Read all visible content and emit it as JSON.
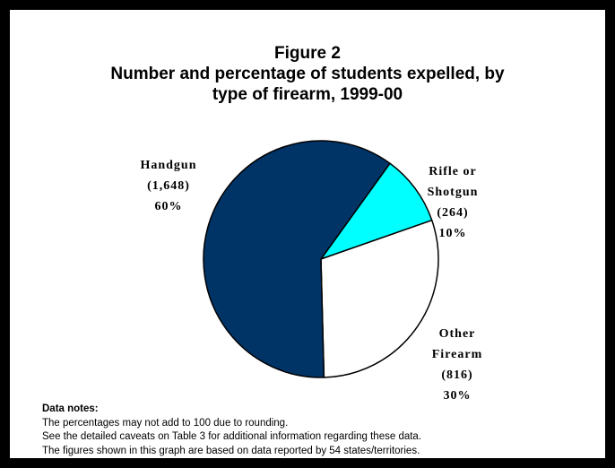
{
  "title": {
    "line1": "Figure 2",
    "line2": "Number and percentage of students expelled, by",
    "line3": "type of firearm, 1999-00"
  },
  "chart_data": {
    "type": "pie",
    "title": "Figure 2 Number and percentage of students expelled, by type of firearm, 1999-00",
    "slices": [
      {
        "label_lines": [
          "Rifle or",
          "Shotgun"
        ],
        "count": "(264)",
        "value": 264,
        "percent": "10%",
        "color": "#00ffff"
      },
      {
        "label_lines": [
          "Other",
          "Firearm"
        ],
        "count": "(816)",
        "value": 816,
        "percent": "30%",
        "color": "#ffffff"
      },
      {
        "label_lines": [
          "Handgun"
        ],
        "count": "(1,648)",
        "value": 1648,
        "percent": "60%",
        "color": "#003366"
      }
    ],
    "start_angle_deg": 36,
    "direction": "clockwise",
    "edge_color": "#000000"
  },
  "notes": {
    "heading": "Data notes:",
    "lines": [
      "The percentages may not add to 100 due to rounding.",
      "See the detailed caveats on Table 3 for additional information regarding these data.",
      "The figures shown in this graph are based on data reported by 54 states/territories."
    ]
  }
}
